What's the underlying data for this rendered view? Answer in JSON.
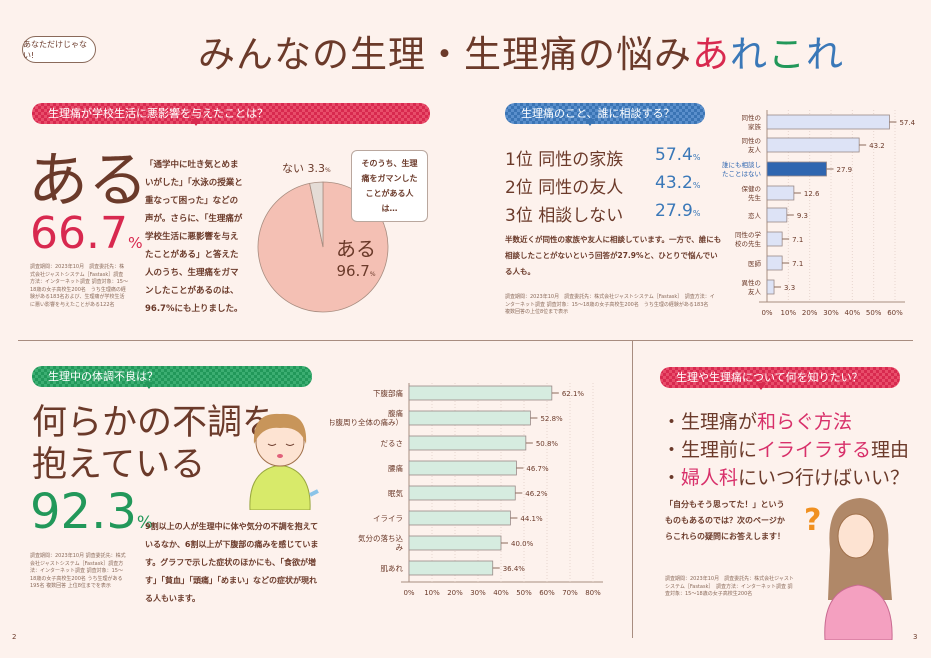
{
  "header": {
    "tag": "あなただけじゃない!",
    "title_main": "みんなの生理・生理痛の悩み",
    "title_accent": [
      "あ",
      "れ",
      "こ",
      "れ"
    ],
    "accent_colors": [
      "#d8294f",
      "#3a78b8",
      "#22985a",
      "#3a78b8"
    ]
  },
  "section1": {
    "banner": "生理痛が学校生活に悪影響を与えたことは？",
    "big": "ある",
    "pct": "66.7",
    "unit": "%",
    "footnote": "調査期間：2023年10月　調査委託先：株式会社ジャストシステム［Fastask］調査方法：インターネット調査 調査対象：15～18歳の女子高校生200名　うち生理痛の経験がある183名および、生理痛が学校生活に悪い影響を与えたことがある122名",
    "body": "「通学中に吐き気とめまいがした」「水泳の授業と重なって困った」などの声が。さらに、「生理痛が学校生活に悪影響を与えたことがある」と答えた人のうち、生理痛をガマンしたことがあるのは、96.7%にも上りました。",
    "callout": "そのうち、生理痛をガマンしたことがある人は…",
    "pie": {
      "type": "pie",
      "slices": [
        {
          "label": "ある",
          "value": 96.7,
          "color": "#f4c0b4"
        },
        {
          "label": "ない",
          "value": 3.3,
          "color": "#e4dcd6"
        }
      ],
      "unit": "%"
    }
  },
  "section2": {
    "banner": "生理痛のこと、誰に相談する？",
    "ranks": [
      {
        "rank": "1位",
        "label": "同性の家族",
        "value": "57.4"
      },
      {
        "rank": "2位",
        "label": "同性の友人",
        "value": "43.2"
      },
      {
        "rank": "3位",
        "label": "相談しない",
        "value": "27.9"
      }
    ],
    "unit": "%",
    "body": "半数近くが同性の家族や友人に相談しています。一方で、誰にも相談したことがないという回答が27.9%と、ひとりで悩んでいる人も。",
    "footnote": "調査期間：2023年10月　調査委託先：株式会社ジャストシステム［Fastask］　調査方法：インターネット調査 調査対象：15～18歳の女子高校生200名　うち生理の経験がある183名　複数回答の上位8位まで表示"
  },
  "section3": {
    "banner": "生理中の体調不良は？",
    "headline1": "何らかの不調を",
    "headline2": "抱えている",
    "pct": "92.3",
    "unit": "%",
    "body": "9割以上の人が生理中に体や気分の不調を抱えているなか、6割以上が下腹部の痛みを感じています。グラフで示した症状のほかにも、「食欲が増す」「貧血」「頭痛」「めまい」などの症状が現れる人もいます。",
    "footnote": "調査期間：2023年10月 調査委託先：株式会社ジャストシステム［Fastask］調査方法：インターネット調査 調査対象：15～18歳の女子高校生200名 うち生理がある195名 複数回答 上位8位までを表示"
  },
  "section4": {
    "banner": "生理や生理痛について何を知りたい？",
    "items": [
      {
        "pre": "・生理痛が",
        "em": "和らぐ方法",
        "post": ""
      },
      {
        "pre": "・生理前に",
        "em": "イライラする",
        "post": "理由"
      },
      {
        "pre": "・",
        "em": "婦人科",
        "post": "にいつ行けばいい？"
      }
    ],
    "body": "「自分もそう思ってた！」というものもあるのでは？次のページからこれらの疑問にお答えします！",
    "footnote": "調査期間：2023年10月　調査委託先：株式会社ジャストシステム［Fastask］　調査方法：インターネット調査 調査対象：15～18歳の女子高校生200名"
  },
  "page_numbers": {
    "left": "2",
    "right": "3"
  },
  "chart_data": [
    {
      "type": "bar",
      "orientation": "horizontal",
      "categories": [
        "同性の家族",
        "同性の友人",
        "誰にも相談したことはない",
        "保健の先生",
        "恋人",
        "同性の学校の先生",
        "医師",
        "異性の友人"
      ],
      "values": [
        57.4,
        43.2,
        27.9,
        12.6,
        9.3,
        7.1,
        7.1,
        3.3
      ],
      "value_labels": [
        "57.4",
        "43.2",
        "27.9",
        "12.6",
        "9.3",
        "7.1",
        "7.1",
        "3.3"
      ],
      "xlim": [
        0,
        60
      ],
      "ticks": [
        "0%",
        "10%",
        "20%",
        "30%",
        "40%",
        "50%",
        "60%"
      ],
      "highlight": "誰にも相談したことはない",
      "colors": {
        "bar": "#dde3f6",
        "highlight": "#2f66b0"
      }
    },
    {
      "type": "bar",
      "orientation": "horizontal",
      "categories": [
        "下腹部痛",
        "腹痛（お腹周り全体の痛み）",
        "だるさ",
        "腰痛",
        "眠気",
        "イライラ",
        "気分の落ち込み",
        "肌あれ"
      ],
      "values": [
        62.1,
        52.8,
        50.8,
        46.7,
        46.2,
        44.1,
        40.0,
        36.4
      ],
      "value_labels": [
        "62.1%",
        "52.8%",
        "50.8%",
        "46.7%",
        "46.2%",
        "44.1%",
        "40.0%",
        "36.4%"
      ],
      "xlim": [
        0,
        80
      ],
      "ticks": [
        "0%",
        "10%",
        "20%",
        "30%",
        "40%",
        "50%",
        "60%",
        "70%",
        "80%"
      ],
      "colors": {
        "bar": "#d6ece0"
      }
    }
  ]
}
